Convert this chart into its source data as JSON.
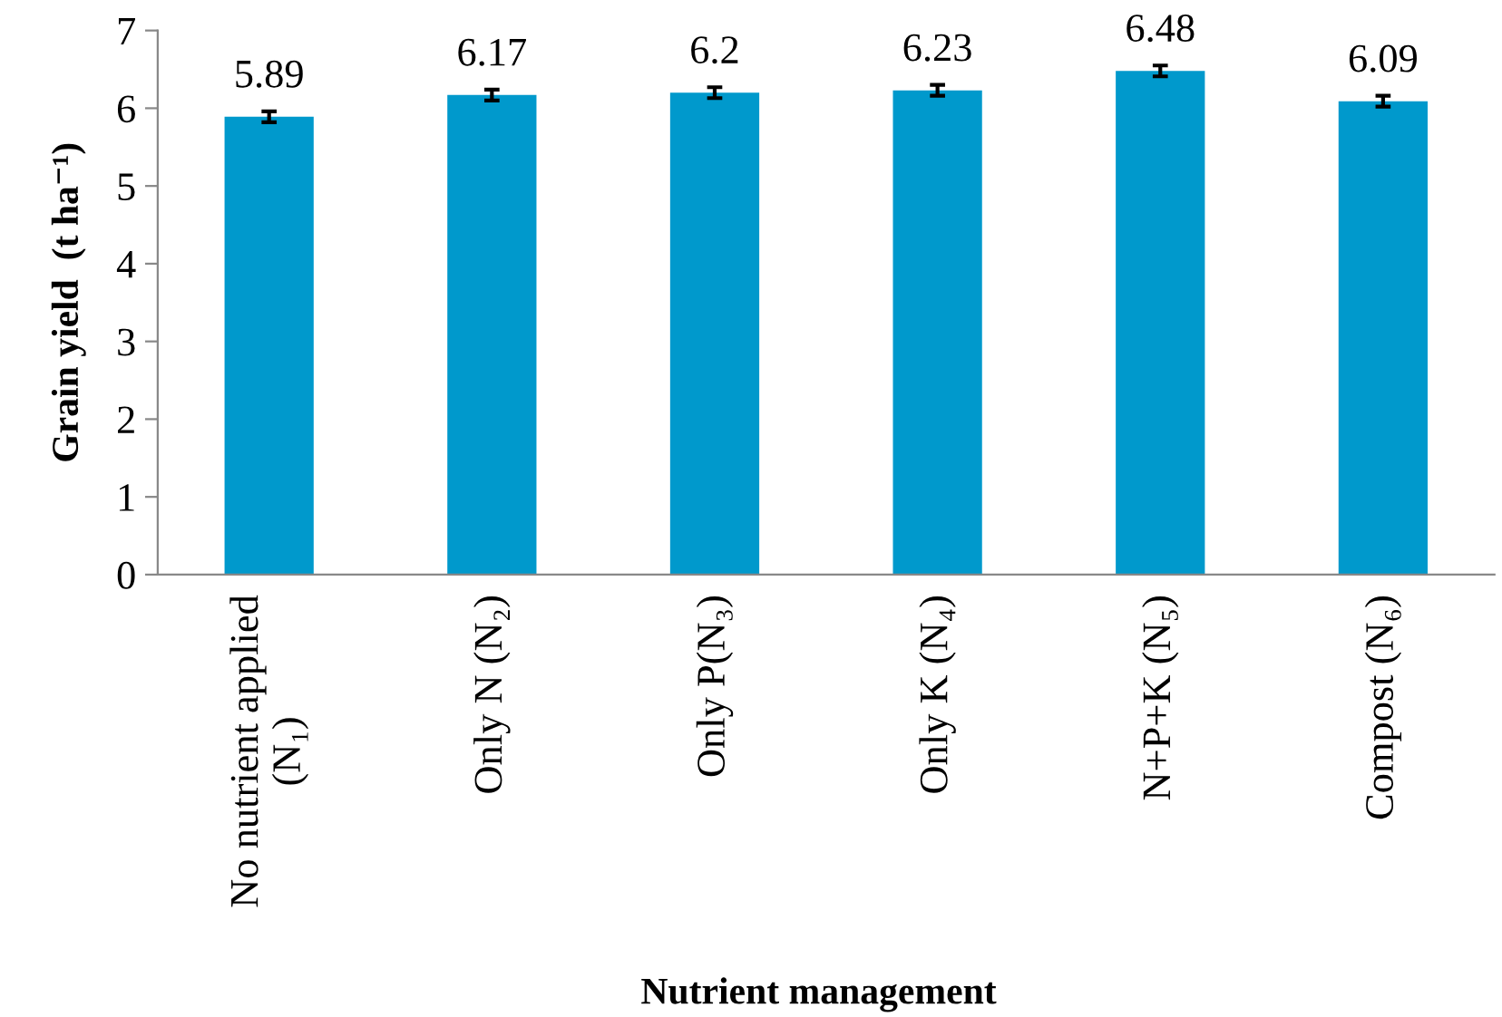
{
  "chart_data": {
    "type": "bar",
    "xlabel": "Nutrient management",
    "ylabel": "Grain yield  (t ha⁻¹)",
    "categories": [
      "No nutrient applied\n(N₁)",
      "Only N (N₂)",
      "Only P(N₃)",
      "Only K (N₄)",
      "N+P+K (N₅)",
      "Compost (N₆)"
    ],
    "values": [
      5.89,
      6.17,
      6.2,
      6.23,
      6.48,
      6.09
    ],
    "errors": [
      0.07,
      0.07,
      0.07,
      0.07,
      0.07,
      0.07
    ],
    "color": "#0099cc",
    "data_labels": true,
    "grid": false,
    "legend": false,
    "ylim": [
      0,
      7
    ],
    "yticks": [
      0,
      1,
      2,
      3,
      4,
      5,
      6,
      7
    ]
  }
}
